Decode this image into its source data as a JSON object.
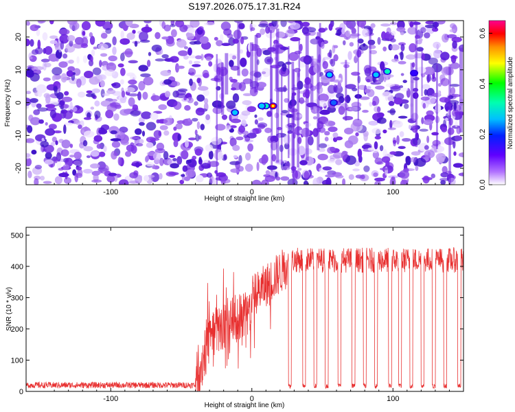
{
  "title": "S197.2026.075.17.31.R24",
  "chart_data": [
    {
      "type": "heatmap",
      "xlabel": "Height of straight line (km)",
      "ylabel": "Frequency (Hz)",
      "xlim": [
        -160,
        150
      ],
      "ylim": [
        -25,
        25
      ],
      "x_ticks": [
        -100,
        0,
        100
      ],
      "y_ticks": [
        -20,
        -10,
        0,
        10,
        20
      ],
      "colorbar": {
        "label": "Normalized spectral amplitude",
        "range": [
          0.0,
          0.65
        ],
        "ticks": [
          0.0,
          0.2,
          0.4,
          0.6
        ],
        "colors": [
          "#ffffff",
          "#8a2be2",
          "#0000ff",
          "#00c0ff",
          "#00ffc0",
          "#00ff00",
          "#ffff00",
          "#ff8000",
          "#ff0000",
          "#ff00a0"
        ]
      },
      "hotspots": [
        {
          "x": 15,
          "y": -1,
          "value": 0.65
        },
        {
          "x": 10,
          "y": -1,
          "value": 0.3
        },
        {
          "x": 7,
          "y": -1,
          "value": 0.25
        },
        {
          "x": -12,
          "y": -3,
          "value": 0.25
        },
        {
          "x": 55,
          "y": 8.5,
          "value": 0.2
        },
        {
          "x": 58,
          "y": 0,
          "value": 0.18
        },
        {
          "x": 88,
          "y": 8.5,
          "value": 0.22
        },
        {
          "x": 96,
          "y": 9.5,
          "value": 0.3
        },
        {
          "x": 115,
          "y": 9,
          "value": 0.12
        }
      ]
    },
    {
      "type": "line",
      "xlabel": "Height of straight line (km)",
      "ylabel": "SNR (10 * v/v)",
      "xlim": [
        -160,
        150
      ],
      "ylim": [
        0,
        525
      ],
      "x_ticks": [
        -100,
        0,
        100
      ],
      "y_ticks": [
        0,
        100,
        200,
        300,
        400,
        500
      ],
      "color": "#e83030",
      "segments": [
        {
          "x": [
            -160,
            -40
          ],
          "base": 20,
          "noise": 10
        },
        {
          "x": [
            -40,
            -30
          ],
          "base_from": 20,
          "base_to": 180,
          "noise": 90
        },
        {
          "x": [
            -30,
            0
          ],
          "base_from": 180,
          "base_to": 260,
          "noise": 80
        },
        {
          "x": [
            0,
            25
          ],
          "base_from": 300,
          "base_to": 400,
          "noise": 70
        },
        {
          "x": [
            25,
            150
          ],
          "base": 420,
          "noise": 40
        }
      ],
      "dropouts_x": [
        27,
        37,
        45,
        53,
        62,
        72,
        80,
        88,
        98,
        105,
        113,
        121,
        129,
        137,
        147
      ]
    }
  ]
}
